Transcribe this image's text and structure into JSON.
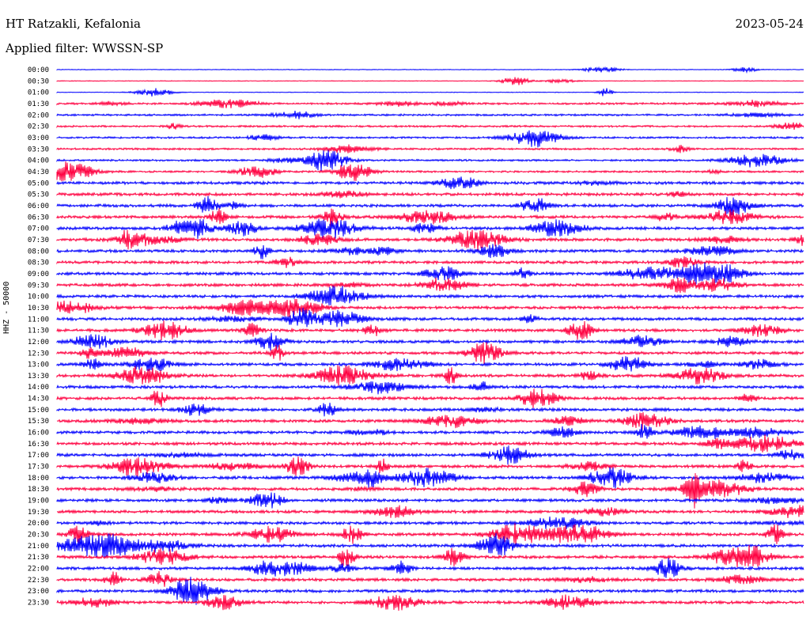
{
  "header": {
    "station": "HT Ratzakli, Kefalonia",
    "date": "2023-05-24",
    "filter": "Applied filter: WWSSN-SP"
  },
  "chart_data": {
    "type": "line",
    "title": "HT Ratzakli, Kefalonia",
    "ylabel": "HHZ - 50000",
    "trace_colors": [
      "#0000ff",
      "#ff0040"
    ],
    "time_labels": [
      "00:00",
      "00:30",
      "01:00",
      "01:30",
      "02:00",
      "02:30",
      "03:00",
      "03:30",
      "04:00",
      "04:30",
      "05:00",
      "05:30",
      "06:00",
      "06:30",
      "07:00",
      "07:30",
      "08:00",
      "08:30",
      "09:00",
      "09:30",
      "10:00",
      "10:30",
      "11:00",
      "11:30",
      "12:00",
      "12:30",
      "13:00",
      "13:30",
      "14:00",
      "14:30",
      "15:00",
      "15:30",
      "16:00",
      "16:30",
      "17:00",
      "17:30",
      "18:00",
      "18:30",
      "19:00",
      "19:30",
      "20:00",
      "20:30",
      "21:00",
      "21:30",
      "22:00",
      "22:30",
      "23:00",
      "23:30"
    ]
  }
}
